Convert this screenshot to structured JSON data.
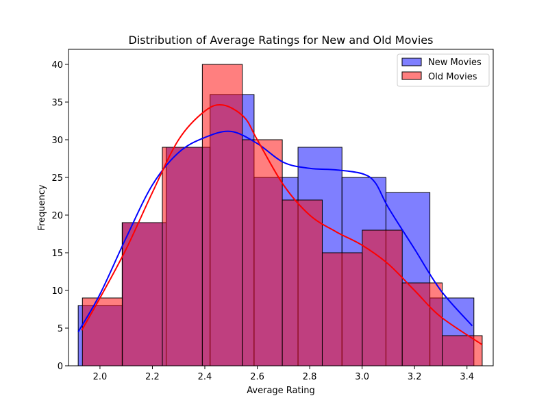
{
  "chart_data": {
    "type": "bar",
    "title": "Distribution of Average Ratings for New and Old Movies",
    "xlabel": "Average Rating",
    "ylabel": "Frequency",
    "xlim": [
      1.88,
      3.5
    ],
    "ylim": [
      0,
      42
    ],
    "x_ticks": [
      "2.0",
      "2.2",
      "2.4",
      "2.6",
      "2.8",
      "3.0",
      "3.2",
      "3.4"
    ],
    "y_ticks": [
      "0",
      "5",
      "10",
      "15",
      "20",
      "25",
      "30",
      "35",
      "40"
    ],
    "grid": false,
    "legend_position": "top-right",
    "series": [
      {
        "name": "New Movies",
        "color": "#0000ff",
        "bin_edges": [
          1.917,
          2.0847,
          2.2524,
          2.4201,
          2.5878,
          2.7555,
          2.9232,
          3.0909,
          3.2586,
          3.4263
        ],
        "counts": [
          8,
          19,
          29,
          36,
          25,
          29,
          25,
          23,
          9
        ],
        "kde": [
          [
            1.917,
            4.5
          ],
          [
            2.0,
            9.5
          ],
          [
            2.1,
            17
          ],
          [
            2.2,
            24
          ],
          [
            2.3,
            28.3
          ],
          [
            2.4,
            30.3
          ],
          [
            2.5,
            31.1
          ],
          [
            2.6,
            29.5
          ],
          [
            2.7,
            27.0
          ],
          [
            2.8,
            26.2
          ],
          [
            2.9,
            26.0
          ],
          [
            3.0,
            25.5
          ],
          [
            3.05,
            24.3
          ],
          [
            3.1,
            21
          ],
          [
            3.2,
            15.5
          ],
          [
            3.3,
            10
          ],
          [
            3.42,
            5.3
          ]
        ]
      },
      {
        "name": "Old Movies",
        "color": "#ff0000",
        "bin_edges": [
          1.933,
          2.0855,
          2.238,
          2.3905,
          2.543,
          2.6955,
          2.848,
          3.0005,
          3.153,
          3.3055,
          3.458
        ],
        "counts": [
          9,
          19,
          29,
          40,
          30,
          22,
          15,
          18,
          11,
          4
        ],
        "kde": [
          [
            1.93,
            4.7
          ],
          [
            2.0,
            9
          ],
          [
            2.1,
            15.5
          ],
          [
            2.2,
            23
          ],
          [
            2.3,
            30
          ],
          [
            2.4,
            33.8
          ],
          [
            2.47,
            34.6
          ],
          [
            2.55,
            33
          ],
          [
            2.6,
            30
          ],
          [
            2.7,
            24
          ],
          [
            2.8,
            20
          ],
          [
            2.9,
            17.8
          ],
          [
            3.0,
            16
          ],
          [
            3.1,
            13.5
          ],
          [
            3.2,
            10
          ],
          [
            3.3,
            6.5
          ],
          [
            3.458,
            2.8
          ]
        ]
      }
    ]
  }
}
